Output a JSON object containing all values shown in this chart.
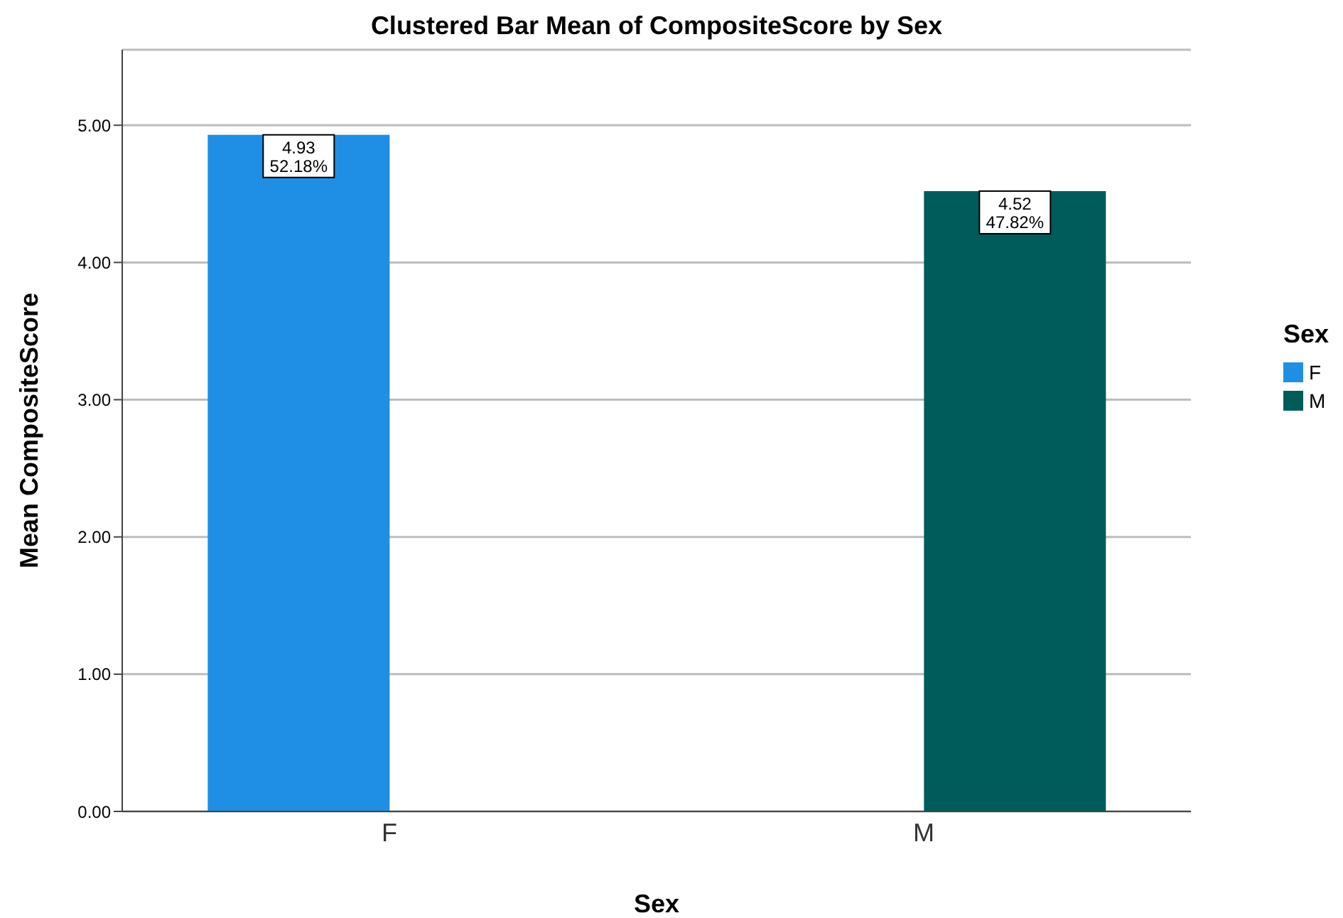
{
  "chart_data": {
    "type": "bar",
    "title": "Clustered Bar Mean of CompositeScore by Sex",
    "xlabel": "Sex",
    "ylabel": "Mean CompositeScore",
    "legend_title": "Sex",
    "categories": [
      "F",
      "M"
    ],
    "series": [
      {
        "name": "F",
        "color": "#1f8fe5",
        "values": [
          4.93,
          null
        ],
        "value_labels": [
          "4.93\n52.18%",
          null
        ]
      },
      {
        "name": "M",
        "color": "#005b5b",
        "values": [
          null,
          4.52
        ],
        "value_labels": [
          null,
          "4.52\n47.82%"
        ]
      }
    ],
    "ylim": [
      0,
      5.55
    ],
    "yticks": [
      {
        "value": 0,
        "label": "0.00"
      },
      {
        "value": 1,
        "label": "1.00"
      },
      {
        "value": 2,
        "label": "2.00"
      },
      {
        "value": 3,
        "label": "3.00"
      },
      {
        "value": 4,
        "label": "4.00"
      },
      {
        "value": 5,
        "label": "5.00"
      }
    ],
    "grid": "y",
    "legend": "right"
  }
}
